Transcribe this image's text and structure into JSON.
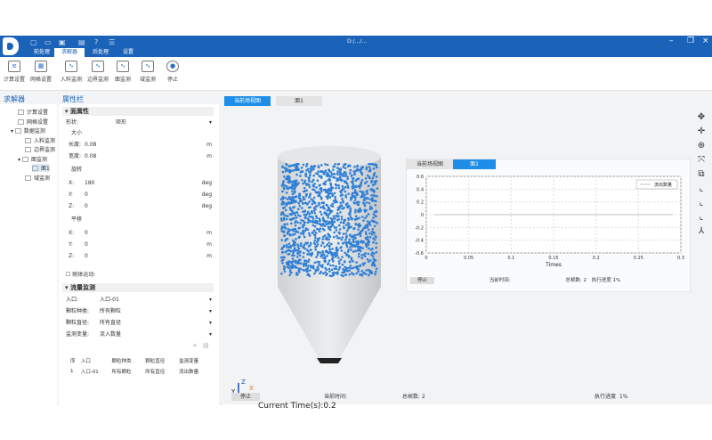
{
  "window": {
    "title": "D:/.../...",
    "quick_access_icons": [
      "new-icon",
      "open-icon",
      "save-icon",
      "save-as-icon",
      "help-icon",
      "log-icon"
    ]
  },
  "menu_tabs": [
    {
      "label": "前处理"
    },
    {
      "label": "求解器",
      "active": true
    },
    {
      "label": "后处理"
    },
    {
      "label": "设置"
    }
  ],
  "ribbon": [
    {
      "label": "计算设置",
      "icon": "calc-settings-icon"
    },
    {
      "label": "网格设置",
      "icon": "grid-settings-icon"
    },
    {
      "label": "入料监测",
      "icon": "inflow-monitor-icon"
    },
    {
      "label": "边界监测",
      "icon": "boundary-monitor-icon"
    },
    {
      "label": "面监测",
      "icon": "surface-monitor-icon"
    },
    {
      "label": "域监测",
      "icon": "domain-monitor-icon"
    },
    {
      "label": "停止",
      "icon": "stop-icon"
    }
  ],
  "tree": {
    "title": "求解器",
    "items": [
      "计算设置",
      "网格设置",
      "数据监测",
      "入料监测",
      "边界监测",
      "面监测",
      "面1",
      "域监测"
    ]
  },
  "props": {
    "title": "属性栏",
    "section1": "面属性",
    "shape_label": "形状:",
    "shape": "矩形",
    "size": "大小",
    "length_label": "长度:",
    "length": "0.08",
    "width_label": "宽度:",
    "width": "0.08",
    "unit_m": "m",
    "unit_deg": "deg",
    "rotation": "旋转",
    "rx": "180",
    "ry": "0",
    "rz": "0",
    "translation": "平移",
    "tx": "0",
    "ty": "0",
    "tz": "0",
    "x": "X:",
    "y": "Y:",
    "z": "Z:",
    "rigid": "刚体运动:",
    "section2": "流量监测",
    "inlet_label": "入口:",
    "inlet": "入口-01",
    "ptype_label": "颗粒种类:",
    "ptype": "所有颗粒",
    "pdiam_label": "颗粒直径:",
    "pdiam": "所有直径",
    "var_label": "监测变量:",
    "var": "流入数量",
    "table": {
      "headers": [
        "序",
        "入口",
        "颗粒种类",
        "颗粒直径",
        "监测变量"
      ],
      "rows": [
        [
          "1",
          "入口-01",
          "所有颗粒",
          "所有直径",
          "流出数量"
        ]
      ]
    }
  },
  "viewport": {
    "tabs": [
      "当前场视图",
      "面1"
    ],
    "current_time": "Current Time(s):0.2",
    "axes": {
      "x": "X",
      "y": "Y",
      "z": "Z"
    },
    "status": {
      "stop": "停止",
      "time_label": "当前时间:",
      "frames_label": "总帧数:",
      "frames": "2",
      "progress_label": "执行进度",
      "progress": "1%"
    },
    "tools": [
      "rotate-icon",
      "pan-icon",
      "zoom-icon",
      "fit-icon",
      "fullscreen-icon",
      "view-x-icon",
      "view-y-icon",
      "view-z-icon",
      "axes-icon"
    ]
  },
  "chart_window": {
    "tabs": [
      "当前场视图",
      "面1"
    ],
    "status": {
      "stop": "停止",
      "time_label": "当前时间:",
      "frames_label": "总帧数:",
      "frames": "2",
      "progress_label": "执行进度",
      "progress": "1%"
    }
  },
  "chart_data": {
    "type": "line",
    "xlabel": "Times",
    "ylabel": "",
    "xlim": [
      0,
      0.3
    ],
    "ylim": [
      -0.6,
      0.6
    ],
    "xticks": [
      "0",
      "0.05",
      "0.1",
      "0.15",
      "0.2",
      "0.25",
      "0.3"
    ],
    "yticks": [
      "0.6",
      "0.4",
      "0.2",
      "0",
      "-0.2",
      "-0.4",
      "-0.6"
    ],
    "grid": true,
    "legend": "top-right",
    "series": [
      {
        "name": "流出数量",
        "x": [
          0.01,
          0.29
        ],
        "y": [
          0,
          0
        ]
      }
    ]
  },
  "colors": {
    "brand": "#1a63b8",
    "accent": "#1e8ee8",
    "particles": "#2f7fd6"
  }
}
